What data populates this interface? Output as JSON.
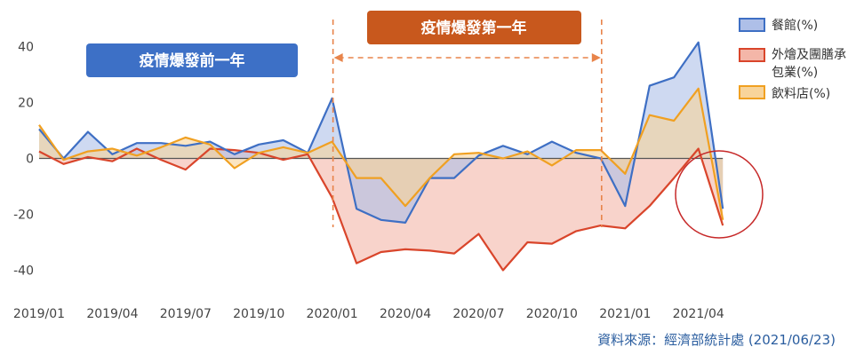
{
  "chart_data": {
    "type": "area",
    "title": "",
    "xlabel": "",
    "ylabel": "",
    "ylim": [
      -45,
      45
    ],
    "yticks": [
      40,
      20,
      0,
      -20,
      -40
    ],
    "x": [
      "2019/01",
      "2019/02",
      "2019/03",
      "2019/04",
      "2019/05",
      "2019/06",
      "2019/07",
      "2019/08",
      "2019/09",
      "2019/10",
      "2019/11",
      "2019/12",
      "2020/01",
      "2020/02",
      "2020/03",
      "2020/04",
      "2020/05",
      "2020/06",
      "2020/07",
      "2020/08",
      "2020/09",
      "2020/10",
      "2020/11",
      "2020/12",
      "2021/01",
      "2021/02",
      "2021/03",
      "2021/04",
      "2021/05"
    ],
    "xtick_labels": [
      "2019/01",
      "2019/04",
      "2019/07",
      "2019/10",
      "2020/01",
      "2020/04",
      "2020/07",
      "2020/10",
      "2021/01",
      "2021/04"
    ],
    "series": [
      {
        "name": "餐館(%)",
        "color": "#3e6fc4",
        "fill": "#aebfe8",
        "values": [
          10.5,
          0,
          9.5,
          1.5,
          5.5,
          5.5,
          4.5,
          6,
          1.5,
          5,
          6.5,
          2,
          21.5,
          -18,
          -22,
          -23,
          -7,
          -7,
          1,
          4.5,
          1.5,
          6,
          2,
          0,
          -17,
          26,
          29,
          41.5,
          -18
        ]
      },
      {
        "name": "外燴及團膳承包業(%)",
        "color": "#d9452b",
        "fill": "#f4b6a8",
        "values": [
          2.5,
          -2,
          0.5,
          -1,
          3.5,
          -0.5,
          -4,
          3.5,
          3,
          2,
          -0.5,
          1.5,
          -14,
          -37.5,
          -33.5,
          -32.5,
          -33,
          -34,
          -27,
          -40,
          -30,
          -30.5,
          -26,
          -24,
          -25,
          -17,
          -7,
          3.5,
          -24
        ]
      },
      {
        "name": "飲料店(%)",
        "color": "#f0a021",
        "fill": "#f8d49a",
        "values": [
          12,
          -0.5,
          2.5,
          3.5,
          1,
          4,
          7.5,
          5,
          -3.5,
          2,
          4,
          2,
          6,
          -7,
          -7,
          -17,
          -7,
          1.5,
          2,
          0,
          2.5,
          -2.5,
          3,
          3,
          -5.5,
          15.5,
          13.5,
          25,
          -22
        ]
      }
    ],
    "annotations": {
      "pre_pandemic": "疫情爆發前一年",
      "pandemic": "疫情爆發第一年",
      "pandemic_range": [
        "2020/01",
        "2020/12"
      ]
    }
  },
  "legend": {
    "item1": "餐館(%)",
    "item2_line1": "外燴及團膳承",
    "item2_line2": "包業(%)",
    "item3": "飲料店(%)"
  },
  "source": "資料來源：經濟部統計處 (2021/06/23)",
  "colors": {
    "banner_blue": "#3d70c6",
    "banner_orange": "#c8581d",
    "dashed_orange": "#e8844a",
    "circle_red": "#c62828"
  }
}
